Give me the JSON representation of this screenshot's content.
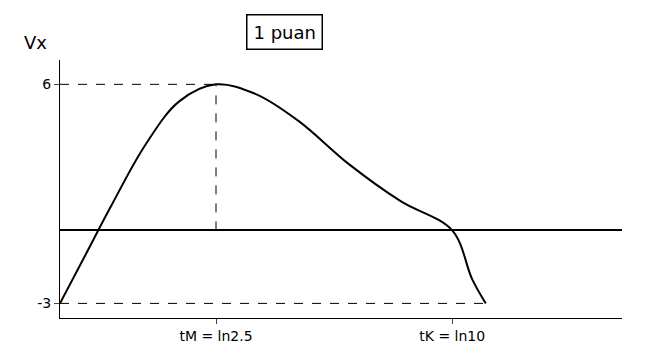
{
  "chart_data": {
    "type": "line",
    "y_label": "Vx",
    "annotations": [
      "1 puan"
    ],
    "x": [
      0,
      0.15,
      0.3,
      0.5,
      0.7,
      0.916,
      1.15,
      1.4,
      1.7,
      2.0,
      2.303,
      2.42,
      2.5
    ],
    "values": [
      -3,
      -1,
      1,
      3.5,
      5.3,
      6,
      5.6,
      4.5,
      2.7,
      1.2,
      0,
      -2,
      -3
    ],
    "color": "#000000",
    "xlim": [
      0,
      3.3
    ],
    "ylim": [
      -3.6,
      7
    ],
    "xticks": [
      {
        "value": 0.916,
        "label": "tM = ln2.5"
      },
      {
        "value": 2.303,
        "label": "tK = ln10"
      }
    ],
    "yticks": [
      -3,
      6
    ],
    "grid": false
  }
}
